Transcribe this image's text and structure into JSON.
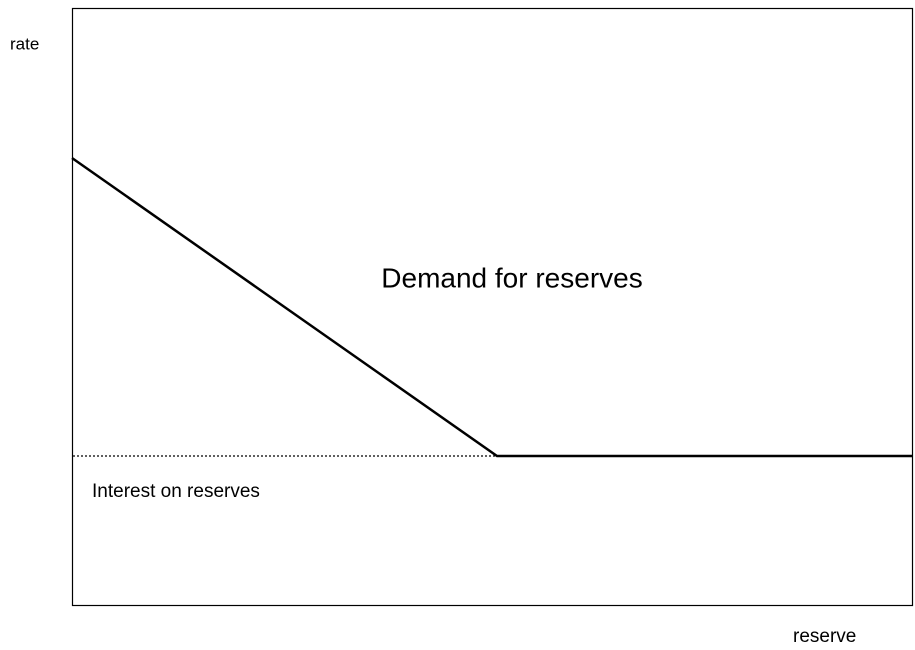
{
  "diagram": {
    "y_axis_label": "rate",
    "x_axis_label": "reserve",
    "curve_label": "Demand for reserves",
    "floor_label": "Interest on reserves"
  }
}
